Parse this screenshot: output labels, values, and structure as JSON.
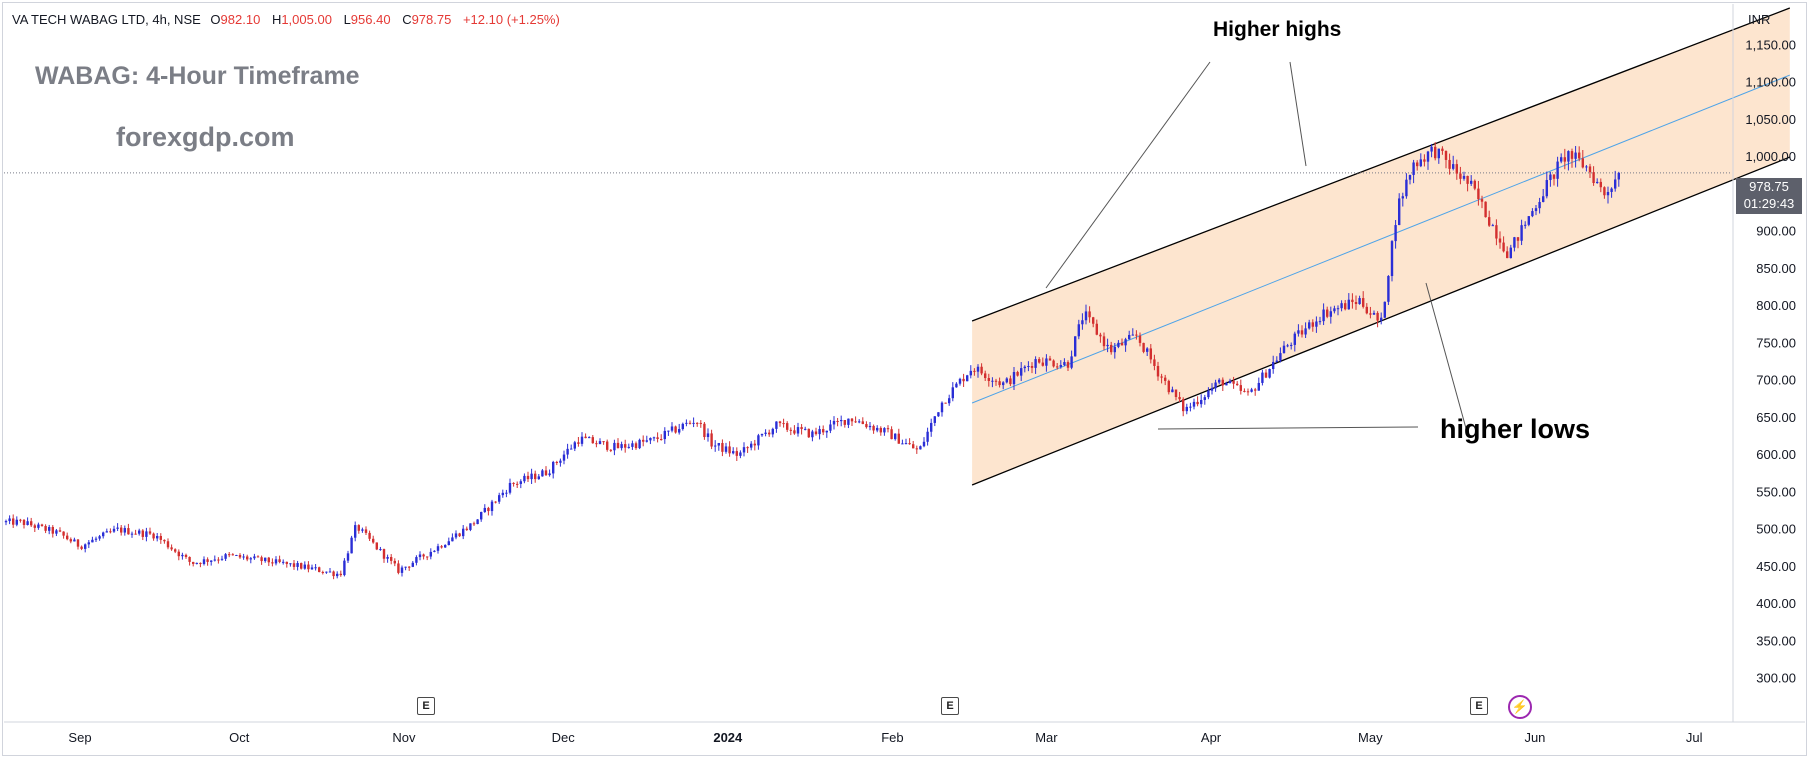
{
  "header": {
    "symbol": "VA TECH WABAG LTD, 4h, NSE",
    "open_label": "O",
    "open": "982.10",
    "high_label": "H",
    "high": "1,005.00",
    "low_label": "L",
    "low": "956.40",
    "close_label": "C",
    "close": "978.75",
    "change": "+12.10 (+1.25%)"
  },
  "watermark": {
    "title": "WABAG: 4-Hour Timeframe",
    "site": "forexgdp.com"
  },
  "annotations": {
    "higher_highs": "Higher highs",
    "higher_lows": "higher lows"
  },
  "price_axis": {
    "currency": "INR",
    "current_price": "978.75",
    "countdown": "01:29:43"
  },
  "events": {
    "earnings_label": "E",
    "bolt": "⚡"
  },
  "colors": {
    "up": "#2a2ed6",
    "down": "#d32f2f",
    "channel_fill": "#fde5cf",
    "channel_line": "#000000",
    "midline": "#4da3e8",
    "axis_text": "#131722",
    "current_price_bg": "#5d606b"
  },
  "chart_data": {
    "type": "candlestick",
    "title": "WABAG: 4-Hour Timeframe",
    "xlabel": "",
    "ylabel": "",
    "ylim": [
      250,
      1200
    ],
    "y_ticks": [
      "300.00",
      "350.00",
      "400.00",
      "450.00",
      "500.00",
      "550.00",
      "600.00",
      "650.00",
      "700.00",
      "750.00",
      "800.00",
      "850.00",
      "900.00",
      "950.00",
      "1,000.00",
      "1,050.00",
      "1,100.00",
      "1,150.00"
    ],
    "x_ticks": [
      "Sep",
      "Oct",
      "Nov",
      "Dec",
      "2024",
      "Feb",
      "Mar",
      "Apr",
      "May",
      "Jun",
      "Jul"
    ],
    "price_path": [
      [
        "2023-08-21",
        510
      ],
      [
        "2023-08-28",
        495
      ],
      [
        "2023-09-01",
        478
      ],
      [
        "2023-09-08",
        500
      ],
      [
        "2023-09-15",
        493
      ],
      [
        "2023-09-22",
        455
      ],
      [
        "2023-09-29",
        465
      ],
      [
        "2023-10-06",
        458
      ],
      [
        "2023-10-13",
        450
      ],
      [
        "2023-10-20",
        440
      ],
      [
        "2023-10-23",
        505
      ],
      [
        "2023-10-31",
        445
      ],
      [
        "2023-11-07",
        475
      ],
      [
        "2023-11-14",
        508
      ],
      [
        "2023-11-21",
        560
      ],
      [
        "2023-11-28",
        578
      ],
      [
        "2023-12-04",
        622
      ],
      [
        "2023-12-11",
        610
      ],
      [
        "2023-12-18",
        620
      ],
      [
        "2023-12-26",
        648
      ],
      [
        "2023-12-29",
        615
      ],
      [
        "2024-01-03",
        600
      ],
      [
        "2024-01-10",
        640
      ],
      [
        "2024-01-17",
        628
      ],
      [
        "2024-01-24",
        650
      ],
      [
        "2024-01-31",
        630
      ],
      [
        "2024-02-06",
        605
      ],
      [
        "2024-02-10",
        668
      ],
      [
        "2024-02-16",
        718
      ],
      [
        "2024-02-22",
        695
      ],
      [
        "2024-02-28",
        728
      ],
      [
        "2024-03-05",
        722
      ],
      [
        "2024-03-08",
        790
      ],
      [
        "2024-03-13",
        740
      ],
      [
        "2024-03-18",
        760
      ],
      [
        "2024-03-22",
        712
      ],
      [
        "2024-03-27",
        660
      ],
      [
        "2024-04-03",
        700
      ],
      [
        "2024-04-08",
        680
      ],
      [
        "2024-04-15",
        745
      ],
      [
        "2024-04-22",
        790
      ],
      [
        "2024-04-29",
        808
      ],
      [
        "2024-05-03",
        775
      ],
      [
        "2024-05-06",
        930
      ],
      [
        "2024-05-09",
        990
      ],
      [
        "2024-05-13",
        1010
      ],
      [
        "2024-05-20",
        960
      ],
      [
        "2024-05-27",
        870
      ],
      [
        "2024-06-03",
        960
      ],
      [
        "2024-06-07",
        1005
      ],
      [
        "2024-06-11",
        985
      ],
      [
        "2024-06-14",
        950
      ],
      [
        "2024-06-17",
        978.75
      ]
    ],
    "channel": {
      "upper": [
        [
          "2024-02-16",
          780
        ],
        [
          "2024-07-19",
          1200
        ]
      ],
      "middle": [
        [
          "2024-02-16",
          670
        ],
        [
          "2024-07-19",
          1110
        ]
      ],
      "lower": [
        [
          "2024-02-16",
          560
        ],
        [
          "2024-07-19",
          1000
        ]
      ]
    },
    "current_price": 978.75,
    "grid": false,
    "legend": "none"
  }
}
